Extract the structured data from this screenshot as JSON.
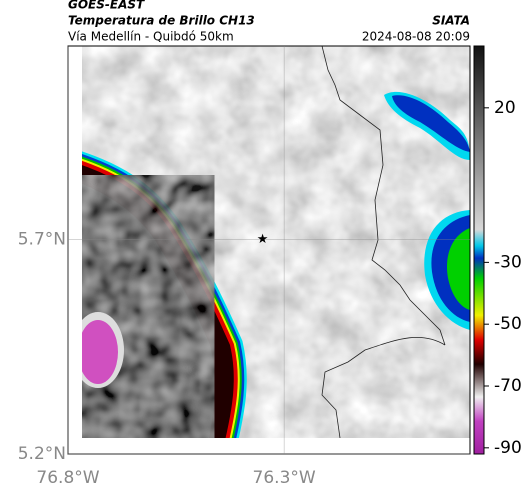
{
  "chart_data": {
    "type": "map",
    "title": "GOES-EAST",
    "subtitle": "Temperatura de Brillo CH13",
    "source": "SIATA",
    "region": "Vía Medellín - Quibdó 50km",
    "datetime": "2024-08-08 20:09",
    "xlim": [
      -76.8,
      -75.87
    ],
    "ylim": [
      5.2,
      6.15
    ],
    "xticks": [
      {
        "value": -76.8,
        "label": "76.8°W"
      },
      {
        "value": -76.3,
        "label": "76.3°W"
      }
    ],
    "yticks": [
      {
        "value": 5.2,
        "label": "5.2°N"
      },
      {
        "value": 5.7,
        "label": "5.7°N"
      }
    ],
    "grid": true,
    "marker": {
      "lon": -76.35,
      "lat": 5.7
    },
    "clim": [
      -92,
      40
    ],
    "cticks": [
      20,
      -30,
      -50,
      -70,
      -90
    ]
  }
}
